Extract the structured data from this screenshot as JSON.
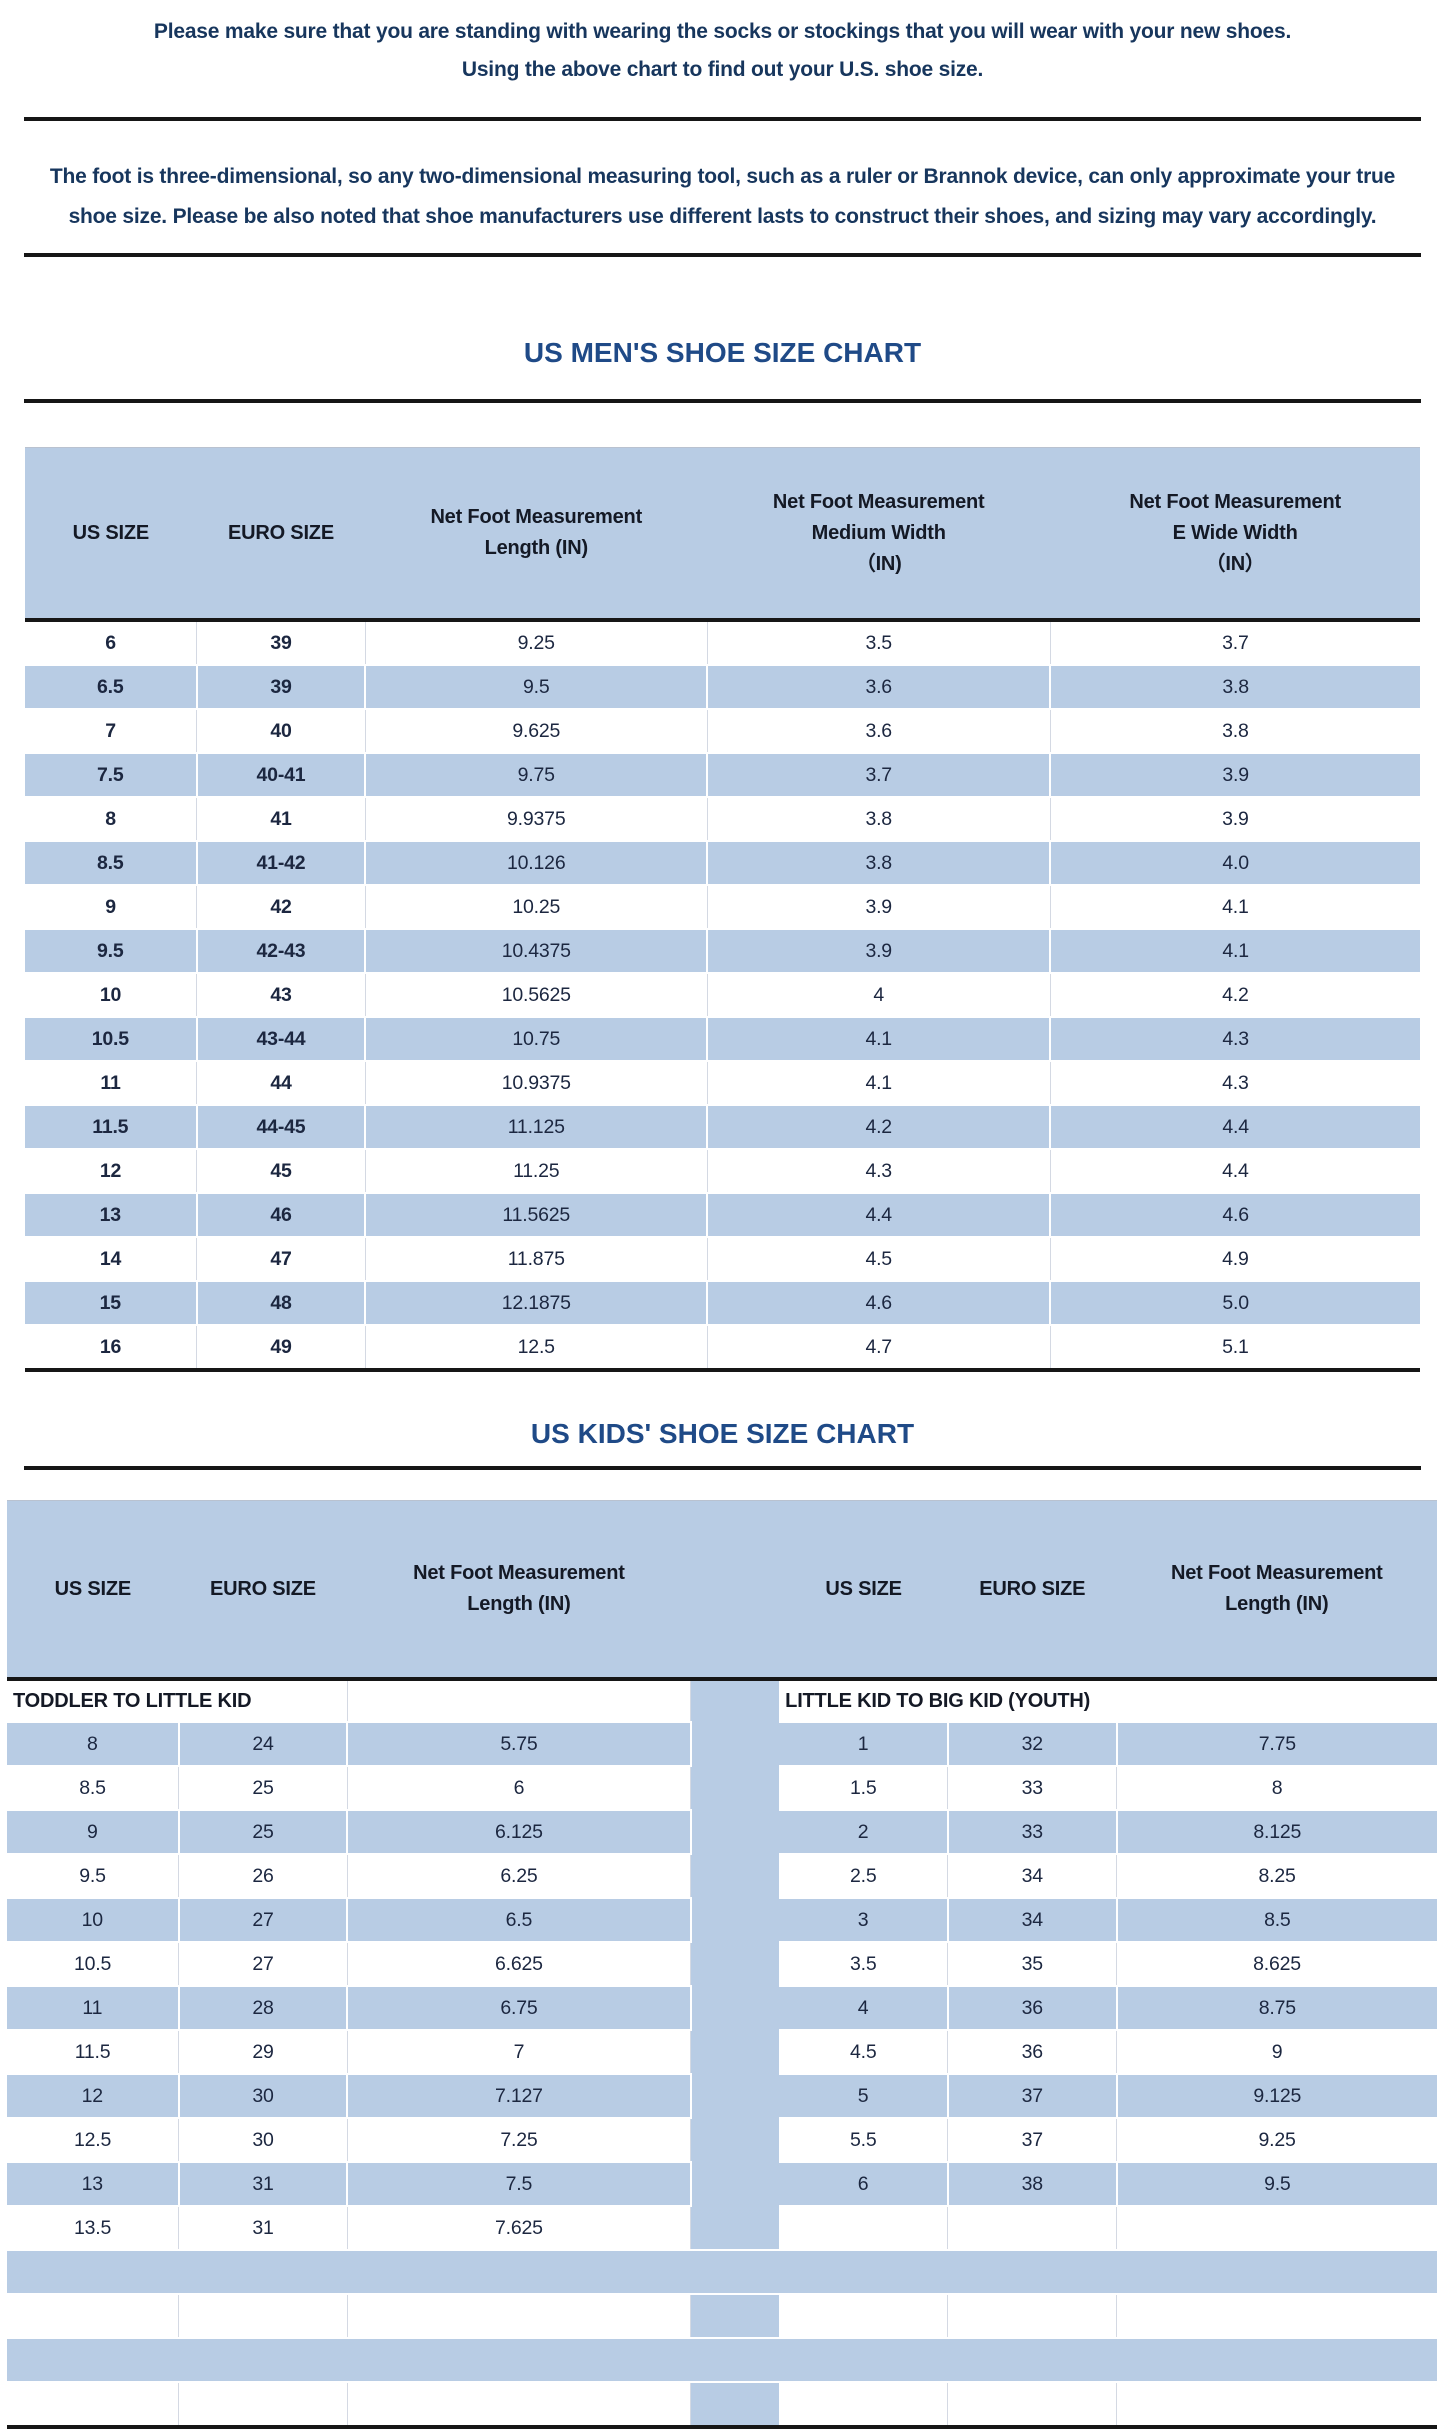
{
  "colors": {
    "stripe_blue": "#b8cce4",
    "rule_dark": "#161616",
    "paragraph_navy": "#17365d",
    "title_blue": "#1f4a87",
    "cell_text": "#1c2740"
  },
  "intro": {
    "line1": "Please make sure that you are standing with wearing the socks or stockings that you will wear with your new shoes.",
    "line2": "Using the above chart to find out your U.S. shoe size.",
    "note": "The foot is three-dimensional, so any two-dimensional measuring tool, such as a ruler or Brannok device, can only approximate your true shoe size. Please be also noted that shoe manufacturers use different lasts to construct their shoes, and sizing may vary accordingly."
  },
  "mens_chart": {
    "title": "US MEN'S SHOE SIZE CHART",
    "headers": [
      "US SIZE",
      "EURO SIZE",
      "Net Foot Measurement\nLength (IN)",
      "Net Foot Measurement\nMedium Width\n（IN)",
      "Net Foot Measurement\nE Wide Width\n（IN）"
    ],
    "rows": [
      [
        "6",
        "39",
        "9.25",
        "3.5",
        "3.7"
      ],
      [
        "6.5",
        "39",
        "9.5",
        "3.6",
        "3.8"
      ],
      [
        "7",
        "40",
        "9.625",
        "3.6",
        "3.8"
      ],
      [
        "7.5",
        "40-41",
        "9.75",
        "3.7",
        "3.9"
      ],
      [
        "8",
        "41",
        "9.9375",
        "3.8",
        "3.9"
      ],
      [
        "8.5",
        "41-42",
        "10.126",
        "3.8",
        "4.0"
      ],
      [
        "9",
        "42",
        "10.25",
        "3.9",
        "4.1"
      ],
      [
        "9.5",
        "42-43",
        "10.4375",
        "3.9",
        "4.1"
      ],
      [
        "10",
        "43",
        "10.5625",
        "4",
        "4.2"
      ],
      [
        "10.5",
        "43-44",
        "10.75",
        "4.1",
        "4.3"
      ],
      [
        "11",
        "44",
        "10.9375",
        "4.1",
        "4.3"
      ],
      [
        "11.5",
        "44-45",
        "11.125",
        "4.2",
        "4.4"
      ],
      [
        "12",
        "45",
        "11.25",
        "4.3",
        "4.4"
      ],
      [
        "13",
        "46",
        "11.5625",
        "4.4",
        "4.6"
      ],
      [
        "14",
        "47",
        "11.875",
        "4.5",
        "4.9"
      ],
      [
        "15",
        "48",
        "12.1875",
        "4.6",
        "5.0"
      ],
      [
        "16",
        "49",
        "12.5",
        "4.7",
        "5.1"
      ]
    ]
  },
  "kids_chart": {
    "title": "US KIDS' SHOE SIZE CHART",
    "headers": [
      "US SIZE",
      "EURO SIZE",
      "Net Foot Measurement\nLength (IN)",
      "",
      "US SIZE",
      "EURO SIZE",
      "Net Foot Measurement\nLength (IN)"
    ],
    "left_section_label": "TODDLER TO LITTLE KID",
    "right_section_label": "LITTLE KID TO BIG KID (YOUTH)",
    "rows": [
      [
        "8",
        "24",
        "5.75",
        "1",
        "32",
        "7.75"
      ],
      [
        "8.5",
        "25",
        "6",
        "1.5",
        "33",
        "8"
      ],
      [
        "9",
        "25",
        "6.125",
        "2",
        "33",
        "8.125"
      ],
      [
        "9.5",
        "26",
        "6.25",
        "2.5",
        "34",
        "8.25"
      ],
      [
        "10",
        "27",
        "6.5",
        "3",
        "34",
        "8.5"
      ],
      [
        "10.5",
        "27",
        "6.625",
        "3.5",
        "35",
        "8.625"
      ],
      [
        "11",
        "28",
        "6.75",
        "4",
        "36",
        "8.75"
      ],
      [
        "11.5",
        "29",
        "7",
        "4.5",
        "36",
        "9"
      ],
      [
        "12",
        "30",
        "7.127",
        "5",
        "37",
        "9.125"
      ],
      [
        "12.5",
        "30",
        "7.25",
        "5.5",
        "37",
        "9.25"
      ],
      [
        "13",
        "31",
        "7.5",
        "6",
        "38",
        "9.5"
      ],
      [
        "13.5",
        "31",
        "7.625",
        "",
        "",
        ""
      ]
    ],
    "trailing_empty_rows": [
      "blue",
      "white",
      "blue",
      "white"
    ]
  }
}
